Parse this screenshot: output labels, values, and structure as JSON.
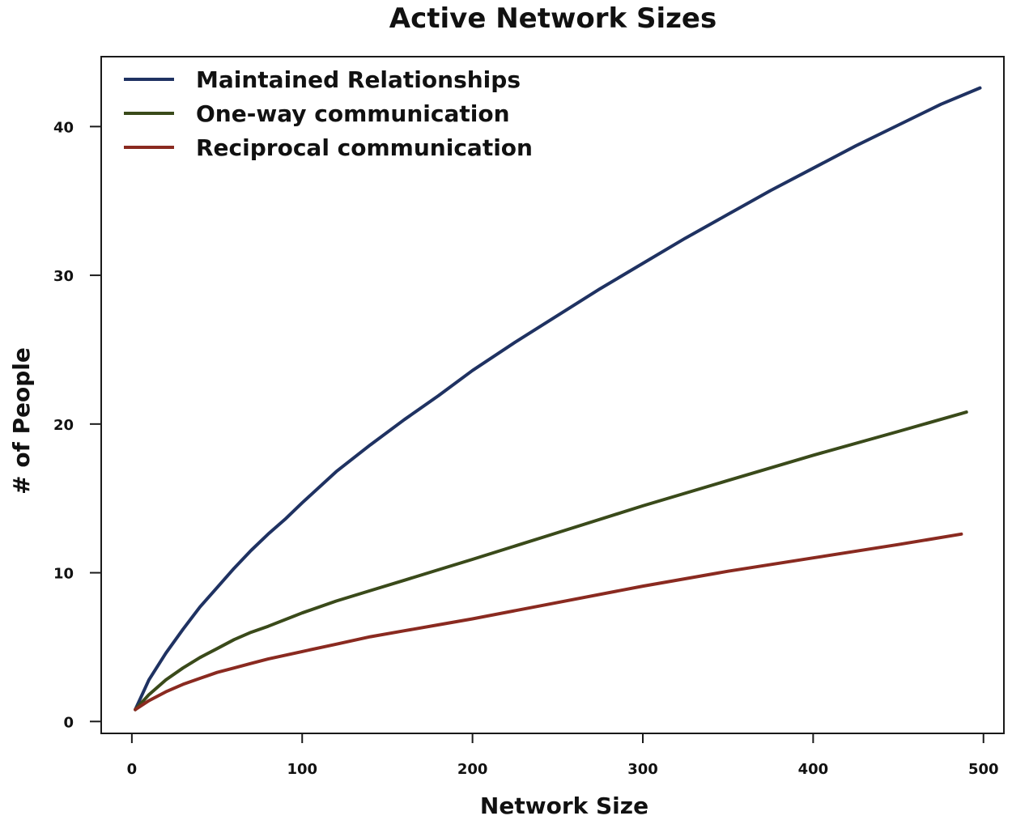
{
  "chart_data": {
    "type": "line",
    "title": "Active Network Sizes",
    "xlabel": "Network Size",
    "ylabel": "# of People",
    "xlim": [
      -18,
      512
    ],
    "ylim": [
      -0.8,
      44.7
    ],
    "xticks": [
      0,
      100,
      200,
      300,
      400,
      500
    ],
    "xtick_labels": [
      "0",
      "100",
      "200",
      "300",
      "400",
      "500"
    ],
    "yticks": [
      0,
      10,
      20,
      30,
      40
    ],
    "ytick_labels": [
      "0",
      "10",
      "20",
      "30",
      "40"
    ],
    "grid": false,
    "legend_position": "top-left",
    "series": [
      {
        "name": "Maintained Relationships",
        "color": "#1f3262",
        "x": [
          2,
          10,
          20,
          30,
          40,
          50,
          60,
          70,
          80,
          90,
          100,
          120,
          140,
          160,
          180,
          200,
          225,
          250,
          275,
          300,
          325,
          350,
          375,
          400,
          425,
          450,
          475,
          498
        ],
        "y": [
          0.8,
          2.8,
          4.6,
          6.2,
          7.7,
          9.0,
          10.3,
          11.5,
          12.6,
          13.6,
          14.7,
          16.8,
          18.6,
          20.3,
          21.9,
          23.6,
          25.5,
          27.3,
          29.1,
          30.8,
          32.5,
          34.1,
          35.7,
          37.2,
          38.7,
          40.1,
          41.5,
          42.6
        ]
      },
      {
        "name": "One-way communication",
        "color": "#3a4a1a",
        "x": [
          2,
          10,
          20,
          30,
          40,
          50,
          60,
          70,
          80,
          100,
          120,
          140,
          160,
          180,
          200,
          250,
          300,
          350,
          400,
          450,
          490
        ],
        "y": [
          0.8,
          1.8,
          2.8,
          3.6,
          4.3,
          4.9,
          5.5,
          6.0,
          6.4,
          7.3,
          8.1,
          8.8,
          9.5,
          10.2,
          10.9,
          12.7,
          14.5,
          16.2,
          17.9,
          19.5,
          20.8
        ]
      },
      {
        "name": "Reciprocal communication",
        "color": "#8a2a20",
        "x": [
          2,
          10,
          20,
          30,
          40,
          50,
          60,
          70,
          80,
          100,
          120,
          140,
          160,
          180,
          200,
          250,
          300,
          350,
          400,
          450,
          487
        ],
        "y": [
          0.8,
          1.4,
          2.0,
          2.5,
          2.9,
          3.3,
          3.6,
          3.9,
          4.2,
          4.7,
          5.2,
          5.7,
          6.1,
          6.5,
          6.9,
          8.0,
          9.1,
          10.1,
          11.0,
          11.9,
          12.6
        ]
      }
    ]
  }
}
